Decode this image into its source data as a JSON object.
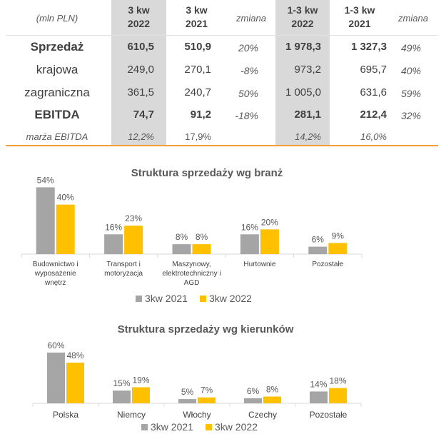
{
  "table": {
    "unit_label": "(mln PLN)",
    "columns": [
      {
        "line1": "3 kw",
        "line2": "2022",
        "highlight": true
      },
      {
        "line1": "3 kw",
        "line2": "2021",
        "highlight": false
      },
      {
        "line1": "zmiana",
        "line2": "",
        "highlight": false
      },
      {
        "line1": "1-3 kw",
        "line2": "2022",
        "highlight": true
      },
      {
        "line1": "1-3 kw",
        "line2": "2021",
        "highlight": false
      },
      {
        "line1": "zmiana",
        "line2": "",
        "highlight": false
      }
    ],
    "rows": [
      {
        "label": "Sprzedaż",
        "style": "bold",
        "values": [
          "610,5",
          "510,9",
          "20%",
          "1 978,3",
          "1 327,3",
          "49%"
        ]
      },
      {
        "label": "krajowa",
        "style": "normal",
        "values": [
          "249,0",
          "270,1",
          "-8%",
          "973,2",
          "695,7",
          "40%"
        ]
      },
      {
        "label": "zagraniczna",
        "style": "normal",
        "values": [
          "361,5",
          "240,7",
          "50%",
          "1 005,0",
          "631,6",
          "59%"
        ]
      },
      {
        "label": "EBITDA",
        "style": "bold",
        "values": [
          "74,7",
          "91,2",
          "-18%",
          "281,1",
          "212,4",
          "32%"
        ]
      },
      {
        "label": "marża EBITDA",
        "style": "italic",
        "values": [
          "12,2%",
          "17,9%",
          "",
          "14,2%",
          "16,0%",
          ""
        ]
      }
    ]
  },
  "colors": {
    "series_2021": "#a5a5a5",
    "series_2022": "#ffc000",
    "accent_rule": "#f0a030",
    "highlight_col": "#d9d9d9"
  },
  "chart_data": [
    {
      "type": "bar",
      "title": "Struktura sprzedaży wg branż",
      "categories": [
        "Budownictwo i wyposażenie wnętrz",
        "Transport i motoryzacja",
        "Maszynowy, elektrotechniczny i AGD",
        "Hurtownie",
        "Pozostałe"
      ],
      "category_lines": [
        [
          "Budownictwo i",
          "wyposażenie",
          "wnętrz"
        ],
        [
          "Transport i",
          "motoryzacja"
        ],
        [
          "Maszynowy,",
          "elektrotechniczny i",
          "AGD"
        ],
        [
          "Hurtownie"
        ],
        [
          "Pozostałe"
        ]
      ],
      "series": [
        {
          "name": "3kw 2021",
          "values": [
            54,
            16,
            8,
            16,
            6
          ],
          "labels": [
            "54%",
            "16%",
            "8%",
            "16%",
            "6%"
          ]
        },
        {
          "name": "3kw 2022",
          "values": [
            40,
            23,
            8,
            20,
            9
          ],
          "labels": [
            "40%",
            "23%",
            "8%",
            "20%",
            "9%"
          ]
        }
      ],
      "ylim": [
        0,
        60
      ],
      "legend": "bottom"
    },
    {
      "type": "bar",
      "title": "Struktura sprzedaży wg kierunków",
      "categories": [
        "Polska",
        "Niemcy",
        "Włochy",
        "Czechy",
        "Pozostałe"
      ],
      "category_lines": [
        [
          "Polska"
        ],
        [
          "Niemcy"
        ],
        [
          "Włochy"
        ],
        [
          "Czechy"
        ],
        [
          "Pozostałe"
        ]
      ],
      "series": [
        {
          "name": "3kw 2021",
          "values": [
            60,
            15,
            5,
            6,
            14
          ],
          "labels": [
            "60%",
            "15%",
            "5%",
            "6%",
            "14%"
          ]
        },
        {
          "name": "3kw 2022",
          "values": [
            48,
            19,
            7,
            8,
            18
          ],
          "labels": [
            "48%",
            "19%",
            "7%",
            "8%",
            "18%"
          ]
        }
      ],
      "ylim": [
        0,
        65
      ],
      "legend": "bottom"
    }
  ]
}
